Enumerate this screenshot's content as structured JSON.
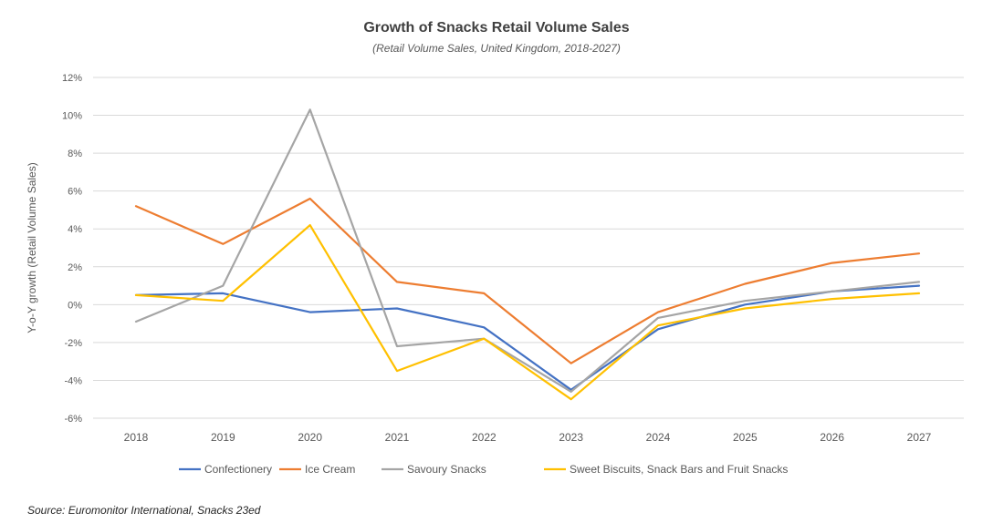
{
  "chart_data": {
    "type": "line",
    "title": "Growth of Snacks Retail Volume Sales",
    "subtitle": "(Retail Volume Sales, United Kingdom, 2018-2027)",
    "xlabel": "",
    "ylabel": "Y-o-Y growth (Retail Volume Sales)",
    "ylim": [
      -6,
      12
    ],
    "yticks": [
      -6,
      -4,
      -2,
      0,
      2,
      4,
      6,
      8,
      10,
      12
    ],
    "ytick_labels": [
      "-6%",
      "-4%",
      "-2%",
      "0%",
      "2%",
      "4%",
      "6%",
      "8%",
      "10%",
      "12%"
    ],
    "categories": [
      "2018",
      "2019",
      "2020",
      "2021",
      "2022",
      "2023",
      "2024",
      "2025",
      "2026",
      "2027"
    ],
    "grid": "horizontal",
    "legend_position": "bottom",
    "series": [
      {
        "name": "Confectionery",
        "color": "#4472C4",
        "values": [
          0.5,
          0.6,
          -0.4,
          -0.2,
          -1.2,
          -4.5,
          -1.3,
          0.0,
          0.7,
          1.0
        ]
      },
      {
        "name": "Ice Cream",
        "color": "#ED7D31",
        "values": [
          5.2,
          3.2,
          5.6,
          1.2,
          0.6,
          -3.1,
          -0.4,
          1.1,
          2.2,
          2.7
        ]
      },
      {
        "name": "Savoury Snacks",
        "color": "#A5A5A5",
        "values": [
          -0.9,
          1.0,
          10.3,
          -2.2,
          -1.8,
          -4.6,
          -0.7,
          0.2,
          0.7,
          1.2
        ]
      },
      {
        "name": "Sweet Biscuits, Snack Bars and Fruit Snacks",
        "color": "#FFC000",
        "values": [
          0.5,
          0.2,
          4.2,
          -3.5,
          -1.8,
          -5.0,
          -1.1,
          -0.2,
          0.3,
          0.6
        ]
      }
    ]
  },
  "source": "Source: Euromonitor International, Snacks 23ed"
}
